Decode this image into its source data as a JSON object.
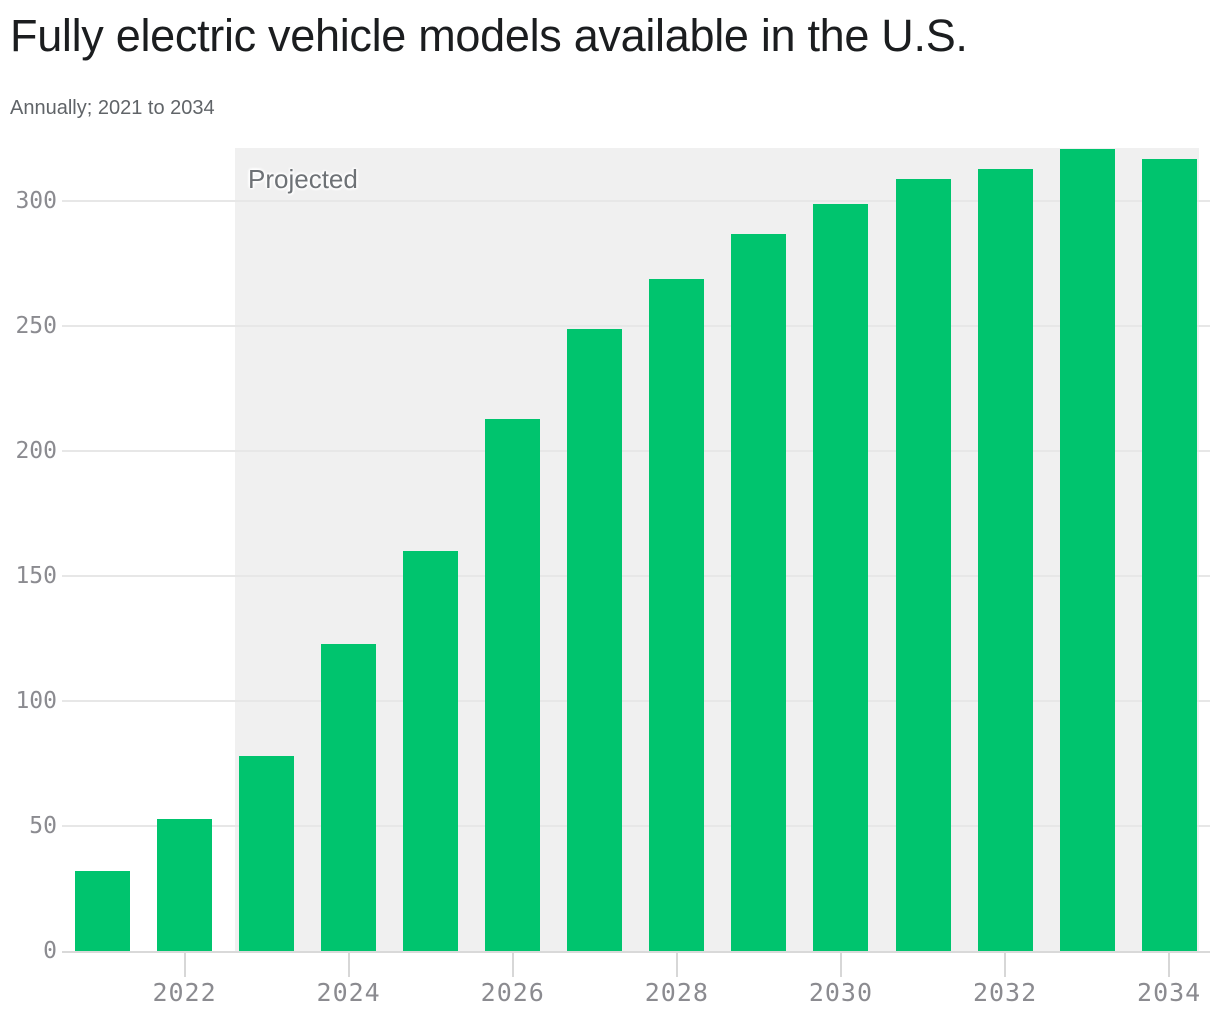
{
  "header": {
    "title": "Fully electric vehicle models available in the U.S.",
    "subtitle": "Annually; 2021 to 2034"
  },
  "chart_data": {
    "type": "bar",
    "title": "Fully electric vehicle models available in the U.S.",
    "subtitle": "Annually; 2021 to 2034",
    "categories": [
      "2021",
      "2022",
      "2023",
      "2024",
      "2025",
      "2026",
      "2027",
      "2028",
      "2029",
      "2030",
      "2031",
      "2032",
      "2033",
      "2034"
    ],
    "values": [
      32,
      53,
      78,
      123,
      160,
      213,
      249,
      269,
      287,
      299,
      309,
      313,
      321,
      317
    ],
    "annotation": "Projected",
    "projected_from": "2023",
    "xlabel": "",
    "ylabel": "",
    "yticks": [
      0,
      50,
      100,
      150,
      200,
      250,
      300
    ],
    "xticks": [
      "2022",
      "2024",
      "2026",
      "2028",
      "2030",
      "2032",
      "2034"
    ],
    "ylim": [
      0,
      321.5
    ],
    "grid": "horizontal",
    "legend": "none",
    "bar_color": "#00c46e",
    "projected_bg_color": "#f0f0f0",
    "gridline_color": "#e7e7e7",
    "axis_text_color": "#8b8b90"
  }
}
